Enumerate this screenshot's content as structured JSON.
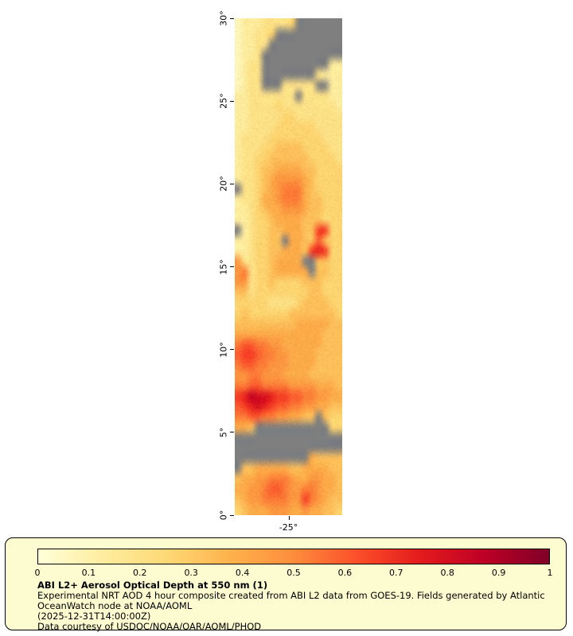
{
  "map": {
    "lat_ticks_top_to_bottom": [
      "30°",
      "25°",
      "20°",
      "15°",
      "10°",
      "5°",
      "0°"
    ],
    "lon_tick_label": "-25°"
  },
  "legend": {
    "colorbar_tick_labels": [
      "0",
      "0.1",
      "0.2",
      "0.3",
      "0.4",
      "0.5",
      "0.6",
      "0.7",
      "0.8",
      "0.9",
      "1"
    ],
    "title": "ABI L2+ Aerosol Optical Depth at 550 nm (1)",
    "line1": "Experimental NRT AOD 4 hour composite created from ABI L2 data from GOES-19. Fields generated by Atlantic",
    "line2": "OceanWatch node at NOAA/AOML",
    "line3": "(2025-12-31T14:00:00Z)",
    "line4": "Data courtesy of USDOC/NOAA/OAR/AOML/PHOD",
    "panel_bg": "#fdfcd0"
  },
  "chart_data": {
    "type": "heatmap",
    "title": "ABI L2+ Aerosol Optical Depth at 550 nm (1)",
    "y_ticks_top_to_bottom": [
      "30°",
      "25°",
      "20°",
      "15°",
      "10°",
      "5°",
      "0°"
    ],
    "x_ticks": [
      "-25°"
    ],
    "value_range": [
      0,
      1
    ],
    "no_data_color": "#7f7f7f",
    "colormap_stops": [
      {
        "t": 0.0,
        "c": "#ffffd9"
      },
      {
        "t": 0.125,
        "c": "#ffeda0"
      },
      {
        "t": 0.25,
        "c": "#fed976"
      },
      {
        "t": 0.375,
        "c": "#feb24c"
      },
      {
        "t": 0.5,
        "c": "#fd8d3c"
      },
      {
        "t": 0.625,
        "c": "#fc4e2a"
      },
      {
        "t": 0.75,
        "c": "#e31a1c"
      },
      {
        "t": 0.875,
        "c": "#bd0026"
      },
      {
        "t": 1.0,
        "c": "#800026"
      }
    ],
    "grid": {
      "cols": 16,
      "rows": 48,
      "encoding": "each char: hex 0-f => AOD value = index/15 ; 'x' => no data (gray)",
      "rows_top_to_bottom": [
        "122233334xxxxxxx",
        "122334xxxxxxxxxx",
        "12233xxxxxxxxxxx",
        "1223xxxxxxxxxxxx",
        "1233xxxxxxxxxx22",
        "1233xxxxxxxx3222",
        "1233xxx33333xx22",
        "223333333x333322",
        "2233334333333332",
        "2233333443333333",
        "2233334444443333",
        "2333344444444333",
        "2333445555444433",
        "2334455555544443",
        "2334556666554444",
        "2334567777654444",
        "x334567888654444",
        "2334667888655444",
        "2234566777655444",
        "2234456666555444",
        "x23445566655aa44",
        "2234455x66559544",
        "22344556665aba44",
        "7334456666xx5544",
        "78344566666x5544",
        "7734454444555444",
        "5534444444455444",
        "4444433334555544",
        "4544444455555554",
        "5555555556666655",
        "6666666666666555",
        "8998877666666555",
        "9aa9887766665555",
        "8998877766665555",
        "7788777666655555",
        "8899888877776665",
        "abdccbaa99887766",
        "9abcba9988776655",
        "889988776655x544",
        "665xxxxxxxxxxx44",
        "xxxxxxxxxxxxxxxx",
        "xxxxxxxxxxxxxxxx",
        "xxxxxxxxxxx65555",
        "x556666655666655",
        "5667788876677665",
        "6677899877887665",
        "5677888877a87655",
        "4566677766766554"
      ]
    }
  }
}
